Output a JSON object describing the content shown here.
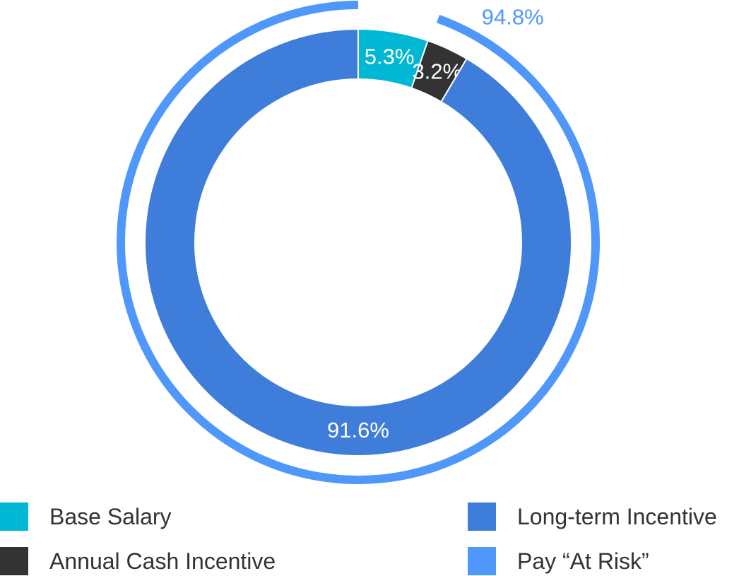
{
  "chart_data": {
    "type": "pie",
    "style": "donut",
    "series": [
      {
        "name": "Base Salary",
        "value": 5.3,
        "label": "5.3%",
        "color": "#00b8d4"
      },
      {
        "name": "Annual Cash Incentive",
        "value": 3.2,
        "label": "3.2%",
        "color": "#333333"
      },
      {
        "name": "Long-term Incentive",
        "value": 91.6,
        "label": "91.6%",
        "color": "#3f7ddb"
      }
    ],
    "outer_ring": {
      "name": "Pay “At Risk”",
      "value": 94.8,
      "label": "94.8%",
      "color": "#4f97fa"
    },
    "legend": {
      "placement": "bottom",
      "items": [
        {
          "label": "Base Salary",
          "color": "#00b8d4"
        },
        {
          "label": "Annual Cash Incentive",
          "color": "#333333"
        },
        {
          "label": "Long-term Incentive",
          "color": "#3f7ddb"
        },
        {
          "label": "Pay “At Risk”",
          "color": "#4f97fa"
        }
      ]
    }
  }
}
